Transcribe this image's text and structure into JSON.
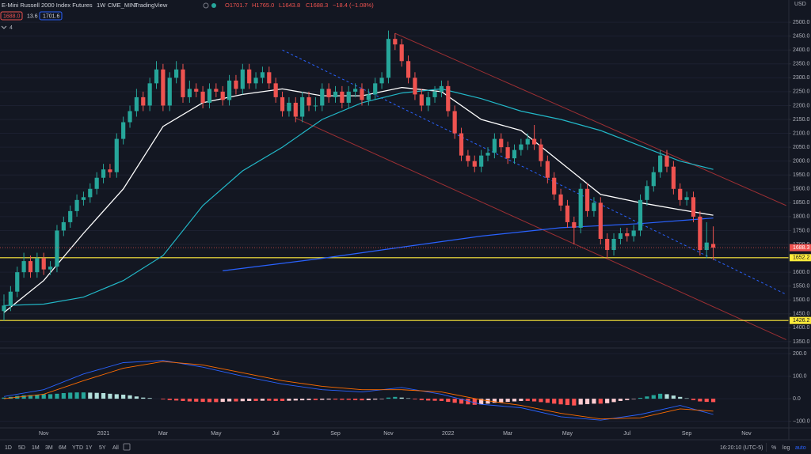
{
  "header": {
    "symbol": "E-Mini Russell 2000 Index Futures",
    "interval": "1W",
    "exchange": "CME_MINI",
    "source": "TradingView",
    "ohlc": [
      "O1701.7",
      "H1765.0",
      "L1643.8",
      "C1688.3",
      "−18.4 (−1.08%)"
    ],
    "badges": [
      "1688.0",
      "13.6",
      "1701.6"
    ],
    "indicator_count": "4"
  },
  "axis_currency": "USD",
  "toolbar": {
    "ranges": [
      "1D",
      "5D",
      "1M",
      "3M",
      "6M",
      "YTD",
      "1Y",
      "5Y",
      "All"
    ],
    "time": "16:20:10 (UTC-5)",
    "options": [
      "%",
      "log",
      "auto"
    ]
  },
  "chart_data": [
    {
      "type": "candlestick",
      "up_color": "#26a69a",
      "down_color": "#ef5350",
      "grid": true,
      "categories": [
        null,
        null,
        null,
        null,
        null,
        null,
        "Nov",
        null,
        null,
        null,
        null,
        null,
        null,
        null,
        null,
        "2021",
        null,
        null,
        null,
        null,
        null,
        null,
        null,
        null,
        "Mar",
        null,
        null,
        null,
        null,
        null,
        null,
        null,
        "May",
        null,
        null,
        null,
        null,
        null,
        null,
        null,
        null,
        "Jul",
        null,
        null,
        null,
        null,
        null,
        null,
        null,
        null,
        "Sep",
        null,
        null,
        null,
        null,
        null,
        null,
        null,
        "Nov",
        null,
        null,
        null,
        null,
        null,
        null,
        null,
        null,
        "2022",
        null,
        null,
        null,
        null,
        null,
        null,
        null,
        null,
        "Mar",
        null,
        null,
        null,
        null,
        null,
        null,
        null,
        null,
        "May",
        null,
        null,
        null,
        null,
        null,
        null,
        null,
        null,
        "Jul",
        null,
        null,
        null,
        null,
        null,
        null,
        null,
        null,
        "Sep",
        null,
        null,
        null,
        null,
        null,
        null,
        null,
        null,
        "Nov"
      ],
      "open": [
        1460,
        1480,
        1530,
        1600,
        1640,
        1600,
        1650,
        1610,
        1620,
        1750,
        1780,
        1820,
        1860,
        1870,
        1900,
        1940,
        1970,
        1960,
        2080,
        2140,
        2180,
        2230,
        2200,
        2280,
        2330,
        2200,
        2300,
        2330,
        2230,
        2260,
        2250,
        2210,
        2260,
        2250,
        2220,
        2290,
        2260,
        2330,
        2280,
        2300,
        2320,
        2280,
        2230,
        2180,
        2210,
        2160,
        2230,
        2200,
        2200,
        2260,
        2230,
        2250,
        2210,
        2250,
        2260,
        2220,
        2240,
        2280,
        2300,
        2440,
        2420,
        2360,
        2300,
        2240,
        2200,
        2230,
        2250,
        2270,
        2180,
        2100,
        2020,
        2000,
        1980,
        2020,
        2030,
        2080,
        2050,
        2010,
        2040,
        2060,
        2080,
        2060,
        2000,
        1940,
        1880,
        1840,
        1780,
        1760,
        1900,
        1820,
        1850,
        1720,
        1680,
        1720,
        1740,
        1730,
        1750,
        1860,
        1910,
        1960,
        2020,
        1980,
        1900,
        1860,
        1870,
        1800,
        1680,
        1701.7,
        null,
        null,
        null,
        null,
        null
      ],
      "high": [
        1520,
        1550,
        1620,
        1670,
        1660,
        1670,
        1670,
        1640,
        1770,
        1800,
        1840,
        1880,
        1890,
        1920,
        1960,
        1990,
        1990,
        2100,
        2160,
        2200,
        2260,
        2250,
        2300,
        2360,
        2350,
        2320,
        2360,
        2350,
        2290,
        2280,
        2270,
        2280,
        2280,
        2270,
        2310,
        2310,
        2350,
        2350,
        2320,
        2340,
        2340,
        2300,
        2250,
        2230,
        2230,
        2250,
        2250,
        2230,
        2280,
        2280,
        2270,
        2270,
        2270,
        2280,
        2280,
        2260,
        2300,
        2320,
        2470,
        2460,
        2440,
        2380,
        2320,
        2260,
        2250,
        2270,
        2290,
        2290,
        2200,
        2120,
        2040,
        2020,
        2040,
        2050,
        2100,
        2100,
        2070,
        2060,
        2080,
        2100,
        2130,
        2080,
        2020,
        1960,
        1900,
        1860,
        1800,
        1920,
        1920,
        1870,
        1870,
        1740,
        1740,
        1760,
        1760,
        1770,
        1880,
        1930,
        1980,
        2040,
        2040,
        2000,
        1920,
        1890,
        1890,
        1820,
        1780,
        1765,
        null,
        null,
        null,
        null,
        null
      ],
      "low": [
        1426,
        1460,
        1510,
        1580,
        1580,
        1580,
        1590,
        1590,
        1600,
        1730,
        1760,
        1800,
        1840,
        1850,
        1880,
        1920,
        1940,
        1940,
        2060,
        2120,
        2160,
        2180,
        2180,
        2260,
        2180,
        2180,
        2280,
        2210,
        2210,
        2230,
        2190,
        2190,
        2230,
        2200,
        2200,
        2240,
        2240,
        2260,
        2260,
        2280,
        2260,
        2210,
        2160,
        2160,
        2140,
        2140,
        2180,
        2180,
        2180,
        2210,
        2210,
        2190,
        2190,
        2230,
        2200,
        2200,
        2220,
        2260,
        2280,
        2400,
        2340,
        2280,
        2220,
        2180,
        2180,
        2210,
        2230,
        2160,
        2080,
        2000,
        1980,
        1960,
        1960,
        2000,
        2010,
        2030,
        1990,
        1990,
        2020,
        2040,
        2040,
        1980,
        1920,
        1860,
        1820,
        1760,
        1700,
        1740,
        1800,
        1800,
        1700,
        1650,
        1660,
        1700,
        1710,
        1710,
        1730,
        1840,
        1890,
        1940,
        1960,
        1880,
        1840,
        1840,
        1780,
        1660,
        1650,
        1643.8,
        null,
        null,
        null,
        null,
        null
      ],
      "close": [
        1480,
        1530,
        1600,
        1640,
        1600,
        1650,
        1610,
        1620,
        1750,
        1780,
        1820,
        1860,
        1870,
        1900,
        1940,
        1970,
        1960,
        2080,
        2140,
        2180,
        2230,
        2200,
        2280,
        2330,
        2200,
        2300,
        2330,
        2230,
        2260,
        2250,
        2210,
        2260,
        2250,
        2220,
        2290,
        2260,
        2330,
        2280,
        2300,
        2320,
        2280,
        2230,
        2180,
        2210,
        2160,
        2230,
        2200,
        2200,
        2260,
        2230,
        2250,
        2210,
        2250,
        2260,
        2220,
        2240,
        2280,
        2300,
        2440,
        2420,
        2360,
        2300,
        2240,
        2200,
        2230,
        2250,
        2270,
        2180,
        2100,
        2020,
        2000,
        1980,
        2020,
        2030,
        2080,
        2050,
        2010,
        2040,
        2060,
        2080,
        2060,
        2000,
        1940,
        1880,
        1840,
        1780,
        1760,
        1900,
        1820,
        1850,
        1720,
        1680,
        1720,
        1740,
        1730,
        1750,
        1860,
        1910,
        1960,
        2020,
        1980,
        1900,
        1860,
        1870,
        1800,
        1680,
        1706.7,
        1688.3,
        null,
        null,
        null,
        null,
        null
      ],
      "series": [
        {
          "color": "#ffffff",
          "x": [
            0,
            6,
            12,
            18,
            24,
            30,
            36,
            42,
            48,
            54,
            60,
            66,
            72,
            78,
            84,
            90,
            96,
            102,
            107
          ],
          "values": [
            1455,
            1570,
            1740,
            1900,
            2125,
            2210,
            2240,
            2260,
            2235,
            2235,
            2265,
            2250,
            2150,
            2110,
            1995,
            1880,
            1850,
            1825,
            1805
          ]
        },
        {
          "color": "#22b8c8",
          "x": [
            0,
            6,
            12,
            18,
            24,
            30,
            36,
            42,
            48,
            54,
            60,
            66,
            72,
            78,
            84,
            90,
            96,
            102,
            107
          ],
          "values": [
            1480,
            1485,
            1510,
            1570,
            1660,
            1840,
            1965,
            2050,
            2150,
            2210,
            2245,
            2260,
            2225,
            2180,
            2150,
            2110,
            2055,
            2000,
            1970
          ]
        },
        {
          "color": "#2962ff",
          "x": [
            33,
            48,
            60,
            72,
            84,
            96,
            107
          ],
          "values": [
            1605,
            1650,
            1690,
            1730,
            1760,
            1775,
            1795
          ]
        }
      ],
      "trendlines": [
        {
          "color": "#9c2f33",
          "dashed": false,
          "x": [
            59,
            118
          ],
          "y": [
            2460,
            1840
          ]
        },
        {
          "color": "#9c2f33",
          "dashed": false,
          "x": [
            44,
            118
          ],
          "y": [
            2155,
            1357
          ]
        },
        {
          "color": "#2962ff",
          "dashed": true,
          "x": [
            42,
            118
          ],
          "y": [
            2400,
            1520
          ]
        }
      ],
      "levels": [
        {
          "value": 1652.2,
          "color": "#ffeb3b"
        },
        {
          "value": 1426.2,
          "color": "#ffeb3b"
        }
      ],
      "ylim": [
        1327,
        2580
      ],
      "yticks": [
        {
          "value": 1350,
          "label": "1350.0"
        },
        {
          "value": 1400,
          "label": "1400.0"
        },
        {
          "value": 1450,
          "label": "1450.0"
        },
        {
          "value": 1500,
          "label": "1500.0"
        },
        {
          "value": 1550,
          "label": "1550.0"
        },
        {
          "value": 1600,
          "label": "1600.0"
        },
        {
          "value": 1650,
          "label": "1650.0"
        },
        {
          "value": 1700,
          "label": "1700.0"
        },
        {
          "value": 1750,
          "label": "1750.0"
        },
        {
          "value": 1800,
          "label": "1800.0"
        },
        {
          "value": 1850,
          "label": "1850.0"
        },
        {
          "value": 1900,
          "label": "1900.0"
        },
        {
          "value": 1950,
          "label": "1950.0"
        },
        {
          "value": 2000,
          "label": "2000.0"
        },
        {
          "value": 2050,
          "label": "2050.0"
        },
        {
          "value": 2100,
          "label": "2100.0"
        },
        {
          "value": 2150,
          "label": "2150.0"
        },
        {
          "value": 2200,
          "label": "2200.0"
        },
        {
          "value": 2250,
          "label": "2250.0"
        },
        {
          "value": 2300,
          "label": "2300.0"
        },
        {
          "value": 2350,
          "label": "2350.0"
        },
        {
          "value": 2400,
          "label": "2400.0"
        },
        {
          "value": 2450,
          "label": "2450.0"
        },
        {
          "value": 2500,
          "label": "2500.0"
        }
      ]
    },
    {
      "type": "macd",
      "hist_colors": [
        "#26a69a",
        "#b2dfdb",
        "#ff5252",
        "#ffcdd2"
      ],
      "histogram": [
        5,
        8,
        12,
        15,
        16,
        18,
        20,
        20,
        22,
        25,
        27,
        28,
        28,
        27,
        26,
        25,
        22,
        20,
        18,
        15,
        10,
        5,
        3,
        0,
        -3,
        -6,
        -8,
        -10,
        -12,
        -13,
        -14,
        -15,
        -15,
        -14,
        -12,
        -12,
        -11,
        -10,
        -10,
        -9,
        -9,
        -10,
        -10,
        -9,
        -8,
        -7,
        -6,
        -6,
        -5,
        -4,
        -4,
        -5,
        -5,
        -6,
        -7,
        -6,
        -4,
        -2,
        5,
        8,
        5,
        2,
        -3,
        -6,
        -8,
        -9,
        -10,
        -14,
        -18,
        -22,
        -25,
        -27,
        -25,
        -22,
        -18,
        -16,
        -14,
        -12,
        -10,
        -10,
        -12,
        -15,
        -18,
        -22,
        -25,
        -28,
        -30,
        -26,
        -24,
        -22,
        -22,
        -20,
        -15,
        -10,
        -6,
        -2,
        4,
        10,
        16,
        22,
        20,
        14,
        8,
        2,
        -6,
        -12,
        -14,
        -15,
        null,
        null,
        null,
        null,
        null
      ],
      "series": [
        {
          "color": "#2962ff",
          "x": [
            0,
            6,
            12,
            18,
            24,
            30,
            36,
            42,
            48,
            54,
            60,
            66,
            72,
            78,
            84,
            90,
            96,
            102,
            107
          ],
          "values": [
            10,
            40,
            110,
            160,
            170,
            140,
            100,
            65,
            40,
            30,
            50,
            20,
            -25,
            -40,
            -80,
            -95,
            -70,
            -30,
            -70
          ]
        },
        {
          "color": "#ff6d00",
          "x": [
            0,
            6,
            12,
            18,
            24,
            30,
            36,
            42,
            48,
            54,
            60,
            66,
            72,
            78,
            84,
            90,
            96,
            102,
            107
          ],
          "values": [
            0,
            20,
            80,
            135,
            165,
            150,
            115,
            80,
            55,
            40,
            40,
            30,
            -5,
            -30,
            -65,
            -90,
            -85,
            -45,
            -55
          ]
        }
      ],
      "ylim": [
        -126,
        225
      ],
      "yticks": [
        {
          "value": 200,
          "label": "200.0"
        },
        {
          "value": 100,
          "label": "100.0"
        },
        {
          "value": 0,
          "label": "0.0"
        },
        {
          "value": -100,
          "label": "−100.0"
        }
      ]
    }
  ]
}
